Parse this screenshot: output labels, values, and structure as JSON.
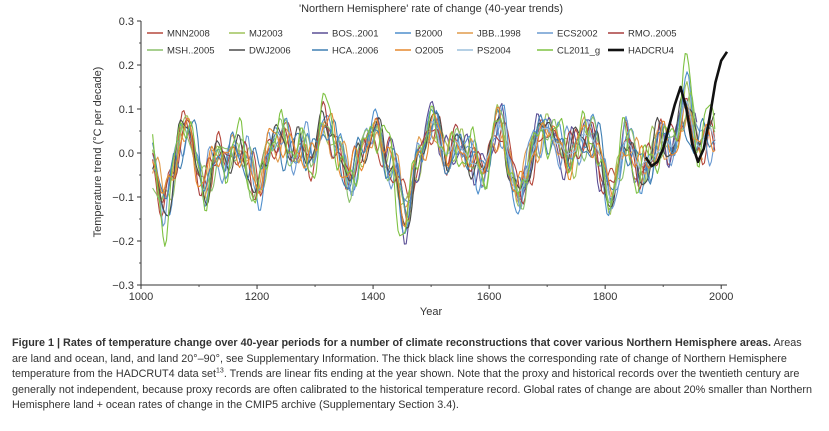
{
  "chart_data": {
    "type": "line",
    "title": "'Northern Hemisphere' rate of change (40-year trends)",
    "xlabel": "Year",
    "ylabel": "Temperature trend (°C per decade)",
    "xlim": [
      1000,
      2010
    ],
    "ylim": [
      -0.3,
      0.3
    ],
    "xticks": [
      "1000",
      "1200",
      "1400",
      "1600",
      "1800",
      "2000"
    ],
    "yticks": [
      "0.3",
      "0.2",
      "0.1",
      "0.0",
      "−0.1",
      "−0.2",
      "−0.3"
    ],
    "grid": false,
    "legend_position": "top",
    "series": [
      {
        "name": "MNN2008",
        "color": "#b5483c",
        "start": 1020,
        "end": 1990,
        "amp": 0.055,
        "seed": 1,
        "width": 1.1
      },
      {
        "name": "MJ2003",
        "color": "#9fc25a",
        "start": 1020,
        "end": 1980,
        "amp": 0.05,
        "seed": 2,
        "width": 1.1
      },
      {
        "name": "BOS..2001",
        "color": "#5a4f96",
        "start": 1400,
        "end": 1960,
        "amp": 0.06,
        "seed": 3,
        "width": 1.1
      },
      {
        "name": "B2000",
        "color": "#4f8fcc",
        "start": 1020,
        "end": 1980,
        "amp": 0.05,
        "seed": 4,
        "width": 1.1
      },
      {
        "name": "JBB..1998",
        "color": "#e09a4a",
        "start": 1020,
        "end": 1970,
        "amp": 0.045,
        "seed": 5,
        "width": 1.1
      },
      {
        "name": "ECS2002",
        "color": "#6b9ad1",
        "start": 1020,
        "end": 1990,
        "amp": 0.06,
        "seed": 6,
        "width": 1.1
      },
      {
        "name": "RMO..2005",
        "color": "#a83e3e",
        "start": 1020,
        "end": 1990,
        "amp": 0.05,
        "seed": 7,
        "width": 1.1
      },
      {
        "name": "MSH..2005",
        "color": "#8bc16b",
        "start": 1020,
        "end": 1990,
        "amp": 0.055,
        "seed": 8,
        "width": 1.1
      },
      {
        "name": "DWJ2006",
        "color": "#4a4a4a",
        "start": 1020,
        "end": 1990,
        "amp": 0.05,
        "seed": 9,
        "width": 1.1
      },
      {
        "name": "HCA..2006",
        "color": "#3f7fb3",
        "start": 1020,
        "end": 1990,
        "amp": 0.06,
        "seed": 10,
        "width": 1.1
      },
      {
        "name": "O2005",
        "color": "#e6882e",
        "start": 1020,
        "end": 1990,
        "amp": 0.05,
        "seed": 11,
        "width": 1.1
      },
      {
        "name": "PS2004",
        "color": "#9cc0dc",
        "start": 1500,
        "end": 1990,
        "amp": 0.015,
        "seed": 12,
        "width": 1.1
      },
      {
        "name": "CL2011_g",
        "color": "#7fc243",
        "start": 1020,
        "end": 1990,
        "amp": 0.07,
        "seed": 13,
        "width": 1.1
      },
      {
        "name": "HADCRU4",
        "color": "#111111",
        "start": 1870,
        "end": 2010,
        "amp": 0.0,
        "seed": 14,
        "width": 2.6
      }
    ],
    "hadcru4_points": [
      [
        1870,
        -0.01
      ],
      [
        1880,
        -0.03
      ],
      [
        1890,
        -0.02
      ],
      [
        1900,
        0.01
      ],
      [
        1910,
        0.06
      ],
      [
        1920,
        0.11
      ],
      [
        1930,
        0.15
      ],
      [
        1940,
        0.1
      ],
      [
        1950,
        0.02
      ],
      [
        1960,
        -0.02
      ],
      [
        1970,
        0.01
      ],
      [
        1980,
        0.08
      ],
      [
        1990,
        0.16
      ],
      [
        2000,
        0.21
      ],
      [
        2010,
        0.23
      ]
    ]
  },
  "caption": {
    "label": "Figure 1 | ",
    "bold_text": "Rates of temperature change over 40-year periods for a number of climate reconstructions that cover various Northern Hemisphere areas.",
    "body_before_ref": " Areas are land and ocean, land, and land 20°–90°, see Supplementary Information. The thick black line shows the corresponding rate of change of Northern Hemisphere temperature from the HADCRUT4 data set",
    "ref": "13",
    "body_after_ref": ". Trends are linear fits ending at the year shown. Note that the proxy and historical records over the twentieth century are generally not independent, because proxy records are often calibrated to the historical temperature record. Global rates of change are about 20% smaller than Northern Hemisphere land + ocean rates of change in the CMIP5 archive (Supplementary Section 3.4)."
  }
}
